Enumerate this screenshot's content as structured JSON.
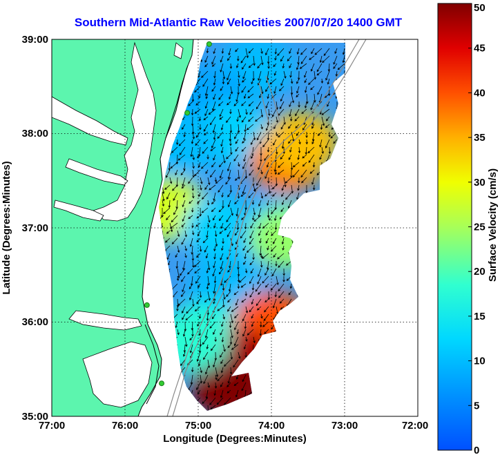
{
  "title": "Southern Mid-Atlantic Raw Velocities 2007/07/20 1400 GMT",
  "xlabel": "Longitude (Degrees:Minutes)",
  "ylabel": "Latitude (Degrees:Minutes)",
  "x_ticks": [
    "77:00",
    "76:00",
    "75:00",
    "74:00",
    "73:00",
    "72:00"
  ],
  "y_ticks": [
    "39:00",
    "38:00",
    "37:00",
    "36:00",
    "35:00"
  ],
  "colorbar": {
    "label": "Surface Velocity (cm/s)",
    "ticks": [
      "50",
      "45",
      "40",
      "35",
      "30",
      "25",
      "20",
      "15",
      "10",
      "5",
      "0"
    ],
    "range": [
      0,
      50
    ],
    "colormap": "jet"
  },
  "colors": {
    "land": "#5cf5ae",
    "title": "#0000ff",
    "station": "#33cc33",
    "isobath": "#888888",
    "background": "#ffffff"
  },
  "chart_data": {
    "type": "heatmap",
    "xlim": [
      -77,
      -72
    ],
    "ylim": [
      35,
      39
    ],
    "grid": true,
    "value_range": [
      0,
      50
    ],
    "units": "cm/s",
    "regions": [
      {
        "lon": -74.2,
        "lat": 38.7,
        "speed": 10
      },
      {
        "lon": -74.8,
        "lat": 38.4,
        "speed": 8
      },
      {
        "lon": -74.5,
        "lat": 38.0,
        "speed": 12
      },
      {
        "lon": -73.8,
        "lat": 37.7,
        "speed": 38
      },
      {
        "lon": -73.6,
        "lat": 37.9,
        "speed": 34
      },
      {
        "lon": -75.2,
        "lat": 37.9,
        "speed": 10
      },
      {
        "lon": -75.4,
        "lat": 37.2,
        "speed": 28
      },
      {
        "lon": -74.7,
        "lat": 37.0,
        "speed": 12
      },
      {
        "lon": -74.0,
        "lat": 37.0,
        "speed": 10
      },
      {
        "lon": -73.8,
        "lat": 36.9,
        "speed": 24
      },
      {
        "lon": -74.6,
        "lat": 36.4,
        "speed": 10
      },
      {
        "lon": -74.9,
        "lat": 35.9,
        "speed": 16
      },
      {
        "lon": -74.0,
        "lat": 36.0,
        "speed": 40
      },
      {
        "lon": -74.4,
        "lat": 35.6,
        "speed": 48
      },
      {
        "lon": -74.6,
        "lat": 35.3,
        "speed": 50
      },
      {
        "lon": -75.1,
        "lat": 35.8,
        "speed": 18
      }
    ],
    "stations": [
      {
        "lon": -74.85,
        "lat": 38.95
      },
      {
        "lon": -75.15,
        "lat": 38.22
      },
      {
        "lon": -75.7,
        "lat": 36.18
      },
      {
        "lon": -75.5,
        "lat": 35.35
      }
    ]
  }
}
